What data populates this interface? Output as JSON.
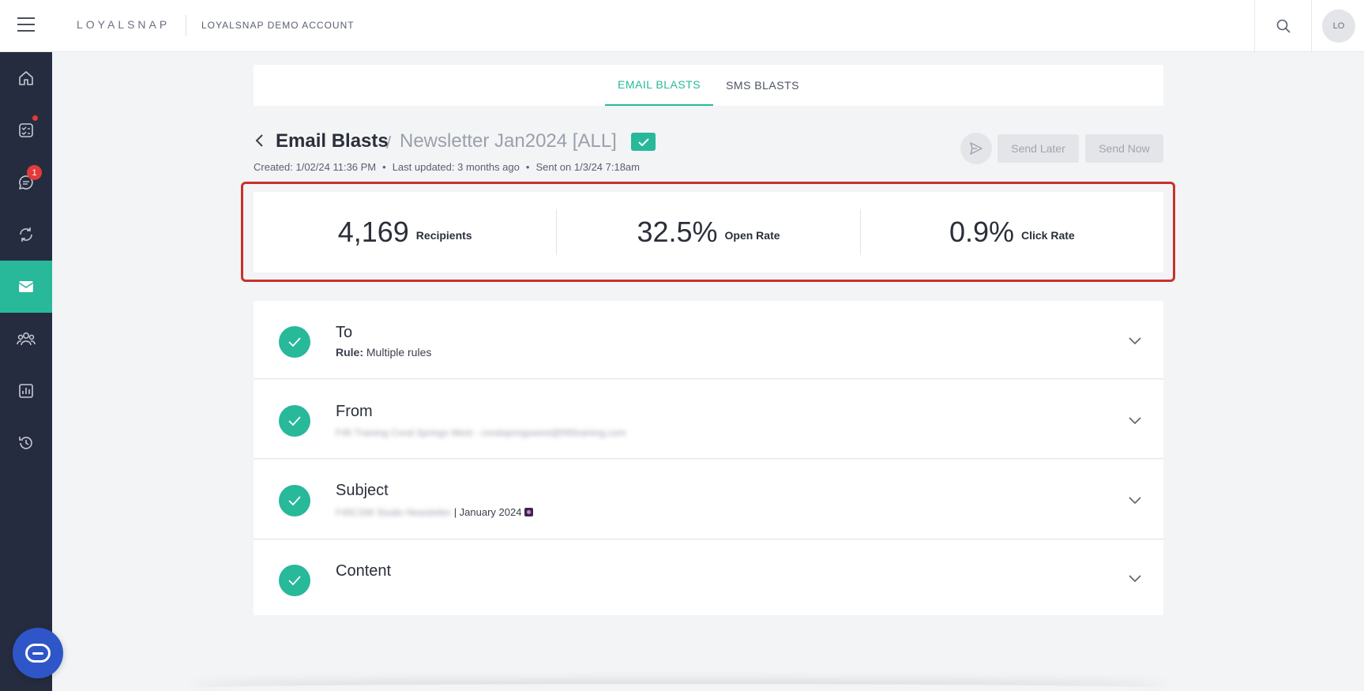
{
  "topbar": {
    "logo": "LOYALSNAP",
    "account_name": "LOYALSNAP DEMO ACCOUNT",
    "avatar_initials": "LO"
  },
  "sidebar": {
    "items": [
      {
        "icon": "home-icon"
      },
      {
        "icon": "checklist-icon",
        "has_dot": true
      },
      {
        "icon": "chat-icon",
        "badge": "1"
      },
      {
        "icon": "refresh-icon"
      },
      {
        "icon": "mail-icon",
        "active": true
      },
      {
        "icon": "members-icon"
      },
      {
        "icon": "reports-icon"
      },
      {
        "icon": "history-icon"
      }
    ]
  },
  "tabs": [
    {
      "label": "EMAIL BLASTS",
      "active": true
    },
    {
      "label": "SMS BLASTS",
      "active": false
    }
  ],
  "header": {
    "breadcrumb_parent": "Email Blasts",
    "separator": "/",
    "blast_name": "Newsletter Jan2024 [ALL]",
    "created": "Created: 1/02/24 11:36 PM",
    "updated": "Last updated: 3 months ago",
    "sent": "Sent on 1/3/24 7:18am",
    "meta_dot": "•",
    "send_later_label": "Send Later",
    "send_now_label": "Send Now"
  },
  "stats": [
    {
      "value": "4,169",
      "label": "Recipients"
    },
    {
      "value": "32.5%",
      "label": "Open Rate"
    },
    {
      "value": "0.9%",
      "label": "Click Rate"
    }
  ],
  "sections": {
    "to": {
      "title": "To",
      "rule_label": "Rule:",
      "rule_value": "Multiple rules"
    },
    "from": {
      "title": "From",
      "value": "F45 Training Coral Springs West - coralspringswest@f45training.com"
    },
    "subject": {
      "title": "Subject",
      "prefix": "F45CSW Studio Newsletter",
      "suffix": "| January 2024"
    },
    "content": {
      "title": "Content"
    }
  },
  "colors": {
    "accent": "#28b89a",
    "sidebar_bg": "#262c40",
    "highlight_outline": "#c9302c",
    "badge": "#e33a3a",
    "chat_bubble": "#2f56c8"
  }
}
